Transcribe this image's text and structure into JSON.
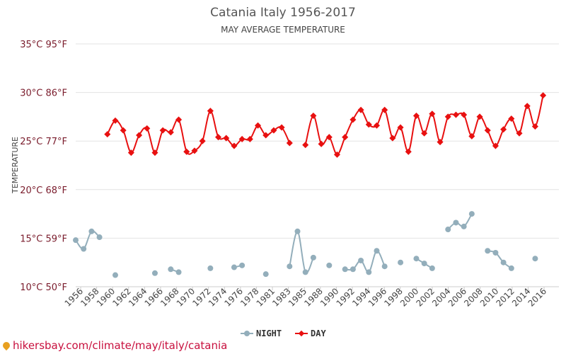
{
  "chart_data": {
    "type": "line",
    "title": "Catania Italy 1956-2017",
    "subtitle": "MAY AVERAGE TEMPERATURE",
    "ylabel": "TEMPERATURE",
    "ylim": [
      10,
      35
    ],
    "yticks": [
      {
        "value": 35,
        "label": "35°C 95°F"
      },
      {
        "value": 30,
        "label": "30°C 86°F"
      },
      {
        "value": 25,
        "label": "25°C 77°F"
      },
      {
        "value": 20,
        "label": "20°C 68°F"
      },
      {
        "value": 15,
        "label": "15°C 59°F"
      },
      {
        "value": 10,
        "label": "10°C 50°F"
      }
    ],
    "xlim": [
      1956,
      2017
    ],
    "xticks": [
      "1956",
      "1958",
      "1960",
      "1962",
      "1964",
      "1966",
      "1968",
      "1970",
      "1972",
      "1974",
      "1976",
      "1978",
      "1981",
      "1983",
      "1985",
      "1988",
      "1990",
      "1992",
      "1994",
      "1996",
      "1998",
      "2000",
      "2002",
      "2004",
      "2006",
      "2008",
      "2010",
      "2012",
      "2014",
      "2016"
    ],
    "grid": true,
    "legend_position": "bottom",
    "series": [
      {
        "name": "NIGHT",
        "color": "#93aebb",
        "points": [
          [
            1956,
            14.8
          ],
          [
            1957,
            13.9
          ],
          [
            1958,
            15.7
          ],
          [
            1959,
            15.1
          ],
          [
            1961,
            11.2
          ],
          [
            1966,
            11.4
          ],
          [
            1968,
            11.8
          ],
          [
            1969,
            11.5
          ],
          [
            1973,
            11.9
          ],
          [
            1976,
            12.0
          ],
          [
            1977,
            12.2
          ],
          [
            1980,
            11.3
          ],
          [
            1983,
            12.1
          ],
          [
            1984,
            15.7
          ],
          [
            1985,
            11.5
          ],
          [
            1986,
            13.0
          ],
          [
            1988,
            12.2
          ],
          [
            1990,
            11.8
          ],
          [
            1991,
            11.8
          ],
          [
            1992,
            12.7
          ],
          [
            1993,
            11.5
          ],
          [
            1994,
            13.7
          ],
          [
            1995,
            12.1
          ],
          [
            1997,
            12.5
          ],
          [
            1999,
            12.9
          ],
          [
            2000,
            12.4
          ],
          [
            2001,
            11.9
          ],
          [
            2003,
            15.9
          ],
          [
            2004,
            16.6
          ],
          [
            2005,
            16.2
          ],
          [
            2006,
            17.5
          ],
          [
            2008,
            13.7
          ],
          [
            2009,
            13.5
          ],
          [
            2010,
            12.5
          ],
          [
            2011,
            11.9
          ],
          [
            2014,
            12.9
          ]
        ]
      },
      {
        "name": "DAY",
        "color": "#e81010",
        "points": [
          [
            1960,
            25.7
          ],
          [
            1961,
            27.1
          ],
          [
            1962,
            26.1
          ],
          [
            1963,
            23.8
          ],
          [
            1964,
            25.6
          ],
          [
            1965,
            26.3
          ],
          [
            1966,
            23.8
          ],
          [
            1967,
            26.1
          ],
          [
            1968,
            25.9
          ],
          [
            1969,
            27.2
          ],
          [
            1970,
            23.9
          ],
          [
            1971,
            24.0
          ],
          [
            1972,
            25.0
          ],
          [
            1973,
            28.1
          ],
          [
            1974,
            25.4
          ],
          [
            1975,
            25.3
          ],
          [
            1976,
            24.5
          ],
          [
            1977,
            25.2
          ],
          [
            1978,
            25.2
          ],
          [
            1979,
            26.6
          ],
          [
            1980,
            25.6
          ],
          [
            1981,
            26.1
          ],
          [
            1982,
            26.4
          ],
          [
            1983,
            24.8
          ],
          [
            1985,
            24.6
          ],
          [
            1986,
            27.6
          ],
          [
            1987,
            24.7
          ],
          [
            1988,
            25.4
          ],
          [
            1989,
            23.6
          ],
          [
            1990,
            25.4
          ],
          [
            1991,
            27.2
          ],
          [
            1992,
            28.2
          ],
          [
            1993,
            26.7
          ],
          [
            1994,
            26.6
          ],
          [
            1995,
            28.2
          ],
          [
            1996,
            25.3
          ],
          [
            1997,
            26.4
          ],
          [
            1998,
            23.9
          ],
          [
            1999,
            27.6
          ],
          [
            2000,
            25.8
          ],
          [
            2001,
            27.8
          ],
          [
            2002,
            24.9
          ],
          [
            2003,
            27.5
          ],
          [
            2004,
            27.7
          ],
          [
            2005,
            27.7
          ],
          [
            2006,
            25.5
          ],
          [
            2007,
            27.5
          ],
          [
            2008,
            26.1
          ],
          [
            2009,
            24.5
          ],
          [
            2010,
            26.2
          ],
          [
            2011,
            27.3
          ],
          [
            2012,
            25.8
          ],
          [
            2013,
            28.6
          ],
          [
            2014,
            26.5
          ],
          [
            2015,
            29.7
          ]
        ]
      }
    ]
  },
  "watermark": "hikersbay.com/climate/may/italy/catania"
}
